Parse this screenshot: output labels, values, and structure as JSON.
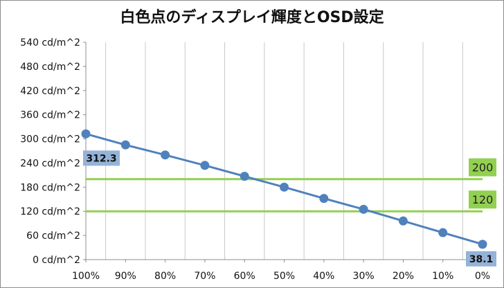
{
  "chart_data": {
    "type": "line",
    "title": "白色点のディスプレイ輝度とOSD設定",
    "xlabel": "",
    "ylabel": "",
    "categories": [
      "100%",
      "90%",
      "80%",
      "70%",
      "60%",
      "50%",
      "40%",
      "30%",
      "20%",
      "10%",
      "0%"
    ],
    "series": [
      {
        "values": [
          312.3,
          285,
          260,
          234,
          207,
          180,
          152,
          125,
          96,
          67,
          38.1
        ],
        "color": "#4f81bd"
      }
    ],
    "y_ticks": [
      "0 cd/m^2",
      "60 cd/m^2",
      "120 cd/m^2",
      "180 cd/m^2",
      "240 cd/m^2",
      "300 cd/m^2",
      "360 cd/m^2",
      "420 cd/m^2",
      "480 cd/m^2",
      "540 cd/m^2"
    ],
    "ylim": [
      0,
      540
    ],
    "y_step": 60,
    "grid": "vertical",
    "legend": "none",
    "reference_lines": [
      {
        "value": 200,
        "label": "200",
        "color": "#92d050",
        "label_bg": "#92d050"
      },
      {
        "value": 120,
        "label": "120",
        "color": "#92d050",
        "label_bg": "#92d050"
      }
    ],
    "data_labels": [
      {
        "index": 0,
        "text": "312.3",
        "bg": "#95b3d7"
      },
      {
        "index": 10,
        "text": "38.1",
        "bg": "#95b3d7"
      }
    ]
  }
}
